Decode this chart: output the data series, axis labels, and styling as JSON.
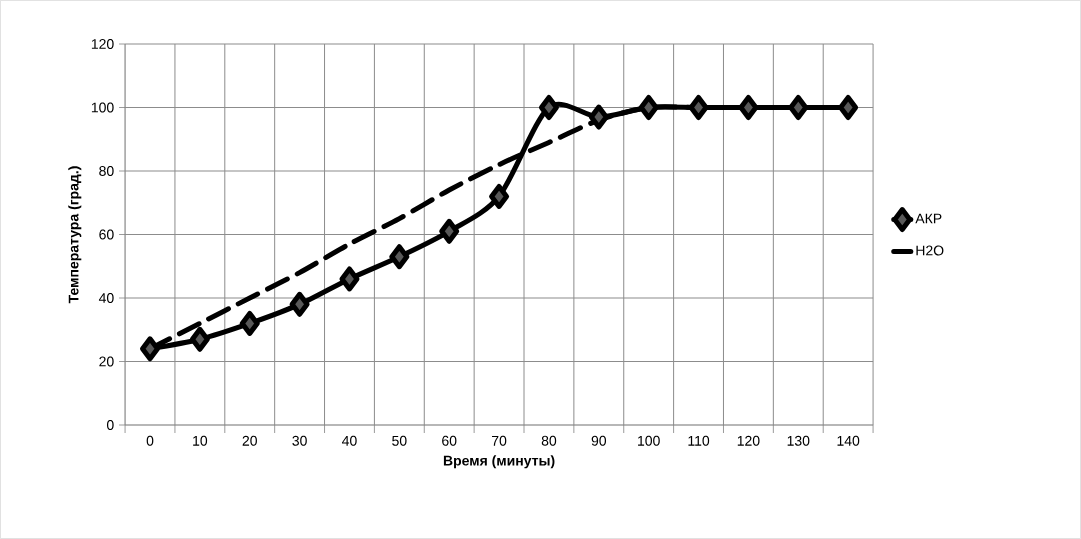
{
  "chart_data": {
    "type": "line",
    "xlabel": "Время (минуты)",
    "ylabel": "Температура (град.)",
    "categories": [
      "0",
      "10",
      "20",
      "30",
      "40",
      "50",
      "60",
      "70",
      "80",
      "90",
      "100",
      "110",
      "120",
      "130",
      "140"
    ],
    "series": [
      {
        "name": "АКР",
        "color": "#000000",
        "marker": "diamond",
        "line_style": "solid",
        "values": [
          24,
          27,
          32,
          38,
          46,
          53,
          61,
          72,
          100,
          97,
          100,
          100,
          100,
          100,
          100
        ]
      },
      {
        "name": "H2O",
        "color": "#000000",
        "marker": "none",
        "line_style": "dashed",
        "values": [
          24,
          32,
          40,
          48,
          57,
          65,
          74,
          82,
          89,
          96,
          100,
          100,
          100,
          100,
          100
        ]
      }
    ],
    "ylim": [
      0,
      120
    ],
    "yticks": [
      0,
      20,
      40,
      60,
      80,
      100,
      120
    ],
    "grid": true,
    "legend": "right"
  }
}
